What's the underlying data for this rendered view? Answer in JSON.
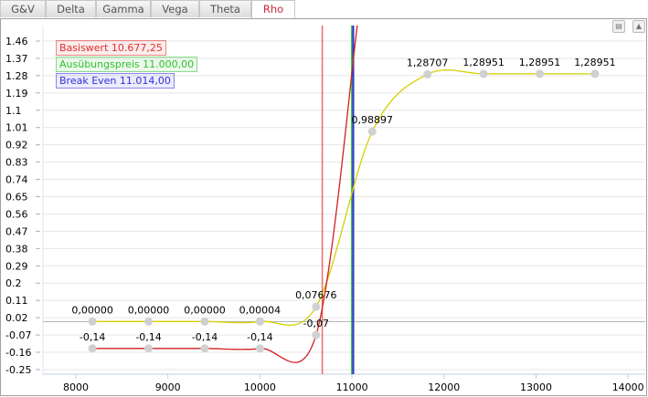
{
  "tabs": [
    {
      "label": "G&V"
    },
    {
      "label": "Delta"
    },
    {
      "label": "Gamma"
    },
    {
      "label": "Vega"
    },
    {
      "label": "Theta"
    },
    {
      "label": "Rho",
      "active": true
    }
  ],
  "toolbar": {
    "print_icon": "printer-icon",
    "collapse_icon": "triangle-up-icon"
  },
  "legend": [
    {
      "label": "Basiswert 10.677,25",
      "color": "#e03030",
      "x": 10677.25
    },
    {
      "label": "Ausübungspreis 11.000,00",
      "color": "#30c030",
      "x": 11000
    },
    {
      "label": "Break Even 11.014,00",
      "color": "#3030e0",
      "x": 11014
    }
  ],
  "chart_data": {
    "type": "line",
    "xlim": [
      7650,
      14200
    ],
    "ylim": [
      -0.27,
      1.53
    ],
    "xticks": [
      8000,
      9000,
      10000,
      11000,
      12000,
      13000,
      14000
    ],
    "yticks": [
      "1.46",
      "1.37",
      "1.28",
      "1.19",
      "1.1",
      "1.01",
      "0.92",
      "0.83",
      "0.74",
      "0.65",
      "0.56",
      "0.47",
      "0.38",
      "0.29",
      "0.2",
      "0.11",
      "0.02",
      "-0.07",
      "-0.16",
      "-0.25"
    ],
    "grid": true,
    "series": [
      {
        "color": "#d4d000",
        "x": [
          8180,
          8790,
          9400,
          10000,
          10610,
          11220,
          11820,
          12430,
          13040,
          13640
        ],
        "y": [
          0,
          0,
          0,
          4e-05,
          0.07676,
          0.98897,
          1.28707,
          1.28951,
          1.28951,
          1.28951
        ],
        "labels": [
          "0,00000",
          "0,00000",
          "0,00000",
          "0,00004",
          "0,07676",
          "0,98897",
          "1,28707",
          "1,28951",
          "1,28951",
          "1,28951"
        ]
      },
      {
        "color": "#d02020",
        "x": [
          8180,
          8790,
          9400,
          10000,
          10610
        ],
        "y": [
          -0.14,
          -0.14,
          -0.14,
          -0.14,
          -0.07
        ],
        "labels": [
          "-0,14",
          "-0,14",
          "-0,14",
          "-0,14",
          "-0,07"
        ],
        "extends_to": {
          "x": 11060,
          "y": 1.55
        }
      }
    ]
  }
}
